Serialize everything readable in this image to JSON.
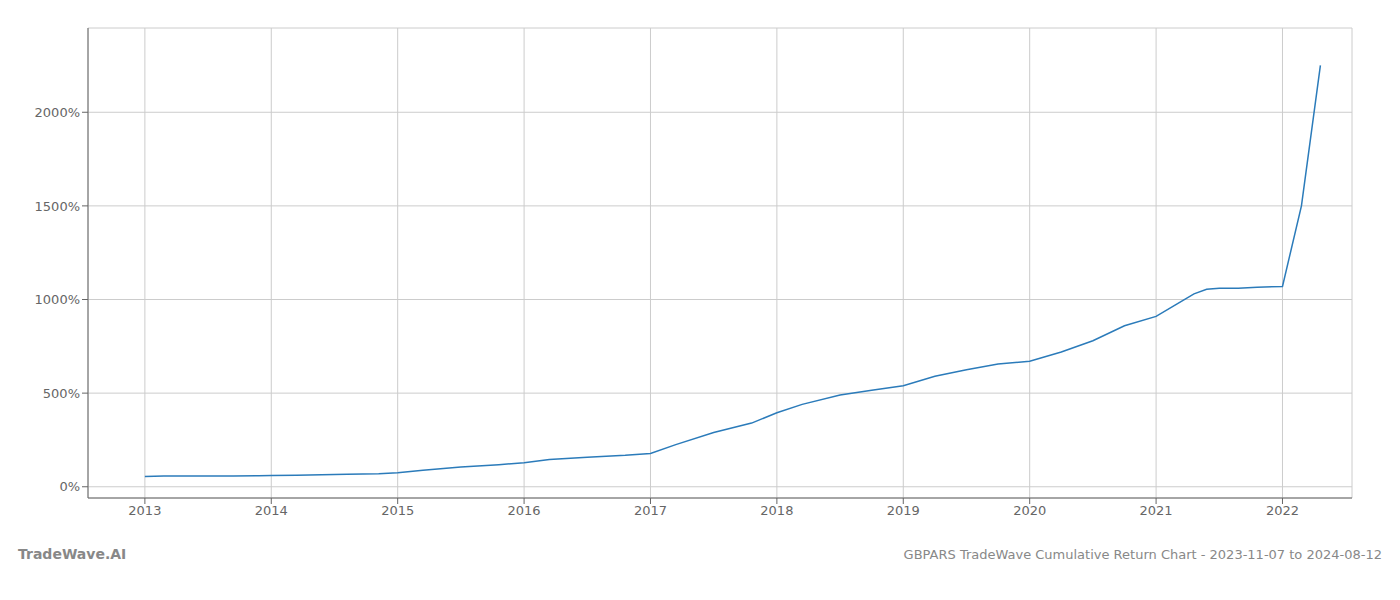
{
  "chart_data": {
    "type": "line",
    "title": "GBPARS TradeWave Cumulative Return Chart - 2023-11-07 to 2024-08-12",
    "annotations": [
      "TradeWave.AI"
    ],
    "x": [
      2013.0,
      2013.15,
      2013.3,
      2013.5,
      2013.7,
      2013.9,
      2014.0,
      2014.2,
      2014.4,
      2014.6,
      2014.85,
      2015.0,
      2015.2,
      2015.5,
      2015.8,
      2016.0,
      2016.2,
      2016.5,
      2016.8,
      2017.0,
      2017.2,
      2017.5,
      2017.8,
      2018.0,
      2018.2,
      2018.5,
      2018.75,
      2019.0,
      2019.25,
      2019.5,
      2019.75,
      2020.0,
      2020.25,
      2020.5,
      2020.75,
      2021.0,
      2021.15,
      2021.3,
      2021.4,
      2021.5,
      2021.65,
      2021.8,
      2022.0,
      2022.15,
      2022.3
    ],
    "values": [
      55,
      57,
      58,
      58,
      58,
      59,
      60,
      62,
      64,
      67,
      70,
      75,
      88,
      105,
      118,
      128,
      145,
      158,
      168,
      178,
      225,
      290,
      340,
      395,
      440,
      490,
      515,
      540,
      590,
      625,
      655,
      670,
      720,
      780,
      860,
      910,
      970,
      1030,
      1055,
      1060,
      1060,
      1065,
      1070,
      1500,
      2250
    ],
    "color": "#2b7bba",
    "xlim": [
      2012.55,
      2022.55
    ],
    "xticks": [
      2013,
      2014,
      2015,
      2016,
      2017,
      2018,
      2019,
      2020,
      2021,
      2022
    ],
    "ylim": [
      -60,
      2450
    ],
    "yticks": [
      {
        "value": 0,
        "label": "0%"
      },
      {
        "value": 500,
        "label": "500%"
      },
      {
        "value": 1000,
        "label": "1000%"
      },
      {
        "value": 1500,
        "label": "1500%"
      },
      {
        "value": 2000,
        "label": "2000%"
      }
    ],
    "grid": true
  }
}
